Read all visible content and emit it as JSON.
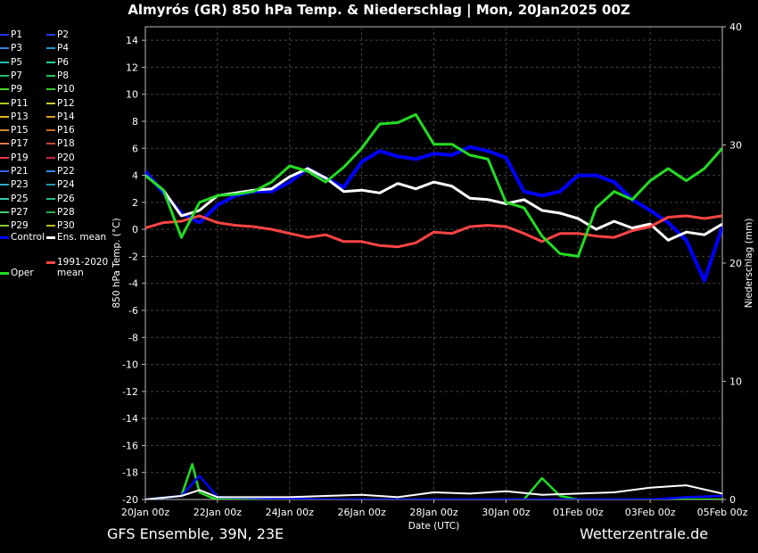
{
  "header": {
    "title": "Almyrós  (GR)  850 hPa Temp. & Niederschlag | Mon, 20Jan2025 00Z"
  },
  "footer": {
    "left": "GFS Ensemble, 39N, 23E",
    "right": "Wetterzentrale.de"
  },
  "legend": [
    {
      "label": "P1",
      "color": "#2233ff"
    },
    {
      "label": "P2",
      "color": "#2244dd"
    },
    {
      "label": "P3",
      "color": "#3388dd"
    },
    {
      "label": "P4",
      "color": "#2299cc"
    },
    {
      "label": "P5",
      "color": "#22bbbb"
    },
    {
      "label": "P6",
      "color": "#22cc99"
    },
    {
      "label": "P7",
      "color": "#22bb77"
    },
    {
      "label": "P8",
      "color": "#22cc55"
    },
    {
      "label": "P9",
      "color": "#44dd22"
    },
    {
      "label": "P10",
      "color": "#33cc22"
    },
    {
      "label": "P11",
      "color": "#aacc22"
    },
    {
      "label": "P12",
      "color": "#cccc33"
    },
    {
      "label": "P13",
      "color": "#ddbb22"
    },
    {
      "label": "P14",
      "color": "#dd9922"
    },
    {
      "label": "P15",
      "color": "#cc8833"
    },
    {
      "label": "P16",
      "color": "#cc6622"
    },
    {
      "label": "P17",
      "color": "#dd7744"
    },
    {
      "label": "P18",
      "color": "#cc4433"
    },
    {
      "label": "P19",
      "color": "#ee3333"
    },
    {
      "label": "P20",
      "color": "#cc2244"
    },
    {
      "label": "P21",
      "color": "#3366ff"
    },
    {
      "label": "P22",
      "color": "#3388ee"
    },
    {
      "label": "P23",
      "color": "#33aacc"
    },
    {
      "label": "P24",
      "color": "#2299aa"
    },
    {
      "label": "P25",
      "color": "#33ccaa"
    },
    {
      "label": "P26",
      "color": "#22bb88"
    },
    {
      "label": "P27",
      "color": "#44cc66"
    },
    {
      "label": "P28",
      "color": "#33aa55"
    },
    {
      "label": "P29",
      "color": "#88cc33"
    },
    {
      "label": "P30",
      "color": "#bbbb22"
    },
    {
      "label": "Control",
      "color": "#0000ff"
    },
    {
      "label": "Ens. mean",
      "color": "#ffffff"
    },
    {
      "label": "1991-2020 mean",
      "color": "#ff4444"
    },
    {
      "label": "Oper",
      "color": "#22dd22"
    }
  ],
  "chart_data": {
    "type": "line",
    "title": "Almyrós  (GR)  850 hPa Temp. & Niederschlag | Mon, 20Jan2025 00Z",
    "xlabel": "Date (UTC)",
    "ylabel": "850 hPa Temp. (°C)",
    "y2label": "Niederschlag (mm)",
    "x_ticks": [
      "20Jan 00z",
      "22Jan 00z",
      "24Jan 00z",
      "26Jan 00z",
      "28Jan 00z",
      "30Jan 00z",
      "01Feb 00z",
      "03Feb 00z",
      "05Feb 00z"
    ],
    "y_ticks": [
      14,
      12,
      10,
      8,
      6,
      4,
      2,
      0,
      -2,
      -4,
      -6,
      -8,
      -10,
      -12,
      -14,
      -16,
      -18,
      -20
    ],
    "y2_ticks": [
      40,
      30,
      20,
      10,
      0
    ],
    "ylim": [
      -20,
      15
    ],
    "y2lim": [
      0,
      40
    ],
    "xlim_days": [
      0,
      16
    ],
    "grid": true,
    "legend_position": "left",
    "series": [
      {
        "name": "Control",
        "color": "#0000ff",
        "x": [
          0,
          0.5,
          1,
          1.5,
          2,
          2.5,
          3,
          3.5,
          4,
          4.5,
          5,
          5.5,
          6,
          6.5,
          7,
          7.5,
          8,
          8.5,
          9,
          9.5,
          10,
          10.5,
          11,
          11.5,
          12,
          12.5,
          13,
          13.5,
          14,
          14.5,
          15,
          15.5,
          16
        ],
        "values": [
          4.3,
          2.7,
          1.2,
          0.5,
          1.8,
          2.5,
          2.8,
          2.8,
          3.5,
          4.5,
          3.8,
          3.1,
          5.0,
          5.8,
          5.4,
          5.2,
          5.6,
          5.5,
          6.1,
          5.8,
          5.3,
          2.8,
          2.5,
          2.8,
          4.0,
          4.0,
          3.5,
          2.2,
          1.4,
          0.5,
          -0.8,
          -3.8,
          0.2
        ]
      },
      {
        "name": "Ens. mean",
        "color": "#ffffff",
        "x": [
          0,
          0.5,
          1,
          1.5,
          2,
          2.5,
          3,
          3.5,
          4,
          4.5,
          5,
          5.5,
          6,
          6.5,
          7,
          7.5,
          8,
          8.5,
          9,
          9.5,
          10,
          10.5,
          11,
          11.5,
          12,
          12.5,
          13,
          13.5,
          14,
          14.5,
          15,
          15.5,
          16
        ],
        "values": [
          4.0,
          2.9,
          1.0,
          1.4,
          2.5,
          2.7,
          2.9,
          3.0,
          3.9,
          4.5,
          3.8,
          2.8,
          2.9,
          2.7,
          3.4,
          3.0,
          3.5,
          3.2,
          2.3,
          2.2,
          1.9,
          2.2,
          1.4,
          1.2,
          0.8,
          0.0,
          0.6,
          0.1,
          0.4,
          -0.8,
          -0.2,
          -0.4,
          0.4
        ]
      },
      {
        "name": "1991-2020 mean",
        "color": "#ff4444",
        "x": [
          0,
          0.5,
          1,
          1.5,
          2,
          2.5,
          3,
          3.5,
          4,
          4.5,
          5,
          5.5,
          6,
          6.5,
          7,
          7.5,
          8,
          8.5,
          9,
          9.5,
          10,
          10.5,
          11,
          11.5,
          12,
          12.5,
          13,
          13.5,
          14,
          14.5,
          15,
          15.5,
          16
        ],
        "values": [
          0.1,
          0.5,
          0.6,
          1.0,
          0.5,
          0.3,
          0.2,
          0.0,
          -0.3,
          -0.6,
          -0.4,
          -0.9,
          -0.9,
          -1.2,
          -1.3,
          -1.0,
          -0.2,
          -0.3,
          0.2,
          0.3,
          0.2,
          -0.3,
          -0.9,
          -0.3,
          -0.3,
          -0.5,
          -0.6,
          -0.1,
          0.2,
          0.9,
          1.0,
          0.8,
          1.0
        ]
      },
      {
        "name": "Oper",
        "color": "#22dd22",
        "x": [
          0,
          0.5,
          1,
          1.5,
          2,
          2.5,
          3,
          3.5,
          4,
          4.5,
          5,
          5.5,
          6,
          6.5,
          7,
          7.5,
          8,
          8.5,
          9,
          9.5,
          10,
          10.5,
          11,
          11.5,
          12,
          12.5,
          13,
          13.5,
          14,
          14.5,
          15,
          15.5,
          16
        ],
        "values": [
          4.0,
          2.9,
          -0.6,
          2.0,
          2.5,
          2.6,
          2.8,
          3.5,
          4.7,
          4.3,
          3.5,
          4.6,
          6.0,
          7.8,
          7.9,
          8.5,
          6.3,
          6.3,
          5.5,
          5.2,
          2.0,
          1.6,
          -0.5,
          -1.8,
          -2.0,
          1.6,
          2.8,
          2.2,
          3.6,
          4.5,
          3.6,
          4.5,
          6.0
        ]
      }
    ],
    "precip_series": [
      {
        "name": "Oper",
        "color": "#22dd22",
        "x": [
          0,
          1,
          1.3,
          1.5,
          1.8,
          2,
          3,
          5,
          7,
          9,
          10.5,
          11,
          11.5,
          12,
          13,
          14,
          15,
          16
        ],
        "values": [
          0,
          0.3,
          3,
          0.6,
          0.2,
          0,
          0,
          0,
          0,
          0,
          0,
          1.8,
          0.3,
          0,
          0,
          0,
          0,
          0
        ]
      },
      {
        "name": "Control",
        "color": "#0000ff",
        "x": [
          0,
          1,
          1.5,
          2,
          5,
          9,
          12,
          14,
          15,
          16
        ],
        "values": [
          0,
          0.3,
          2,
          0.2,
          0,
          0,
          0,
          0,
          0.2,
          0.3
        ]
      },
      {
        "name": "Ens. mean",
        "color": "#ffffff",
        "x": [
          0,
          1,
          1.5,
          2,
          3,
          4,
          5,
          6,
          7,
          8,
          9,
          10,
          11,
          12,
          13,
          14,
          15,
          16
        ],
        "values": [
          0,
          0.3,
          0.8,
          0.2,
          0.2,
          0.2,
          0.3,
          0.4,
          0.2,
          0.6,
          0.5,
          0.7,
          0.4,
          0.5,
          0.6,
          1.0,
          1.2,
          0.5
        ]
      }
    ]
  }
}
